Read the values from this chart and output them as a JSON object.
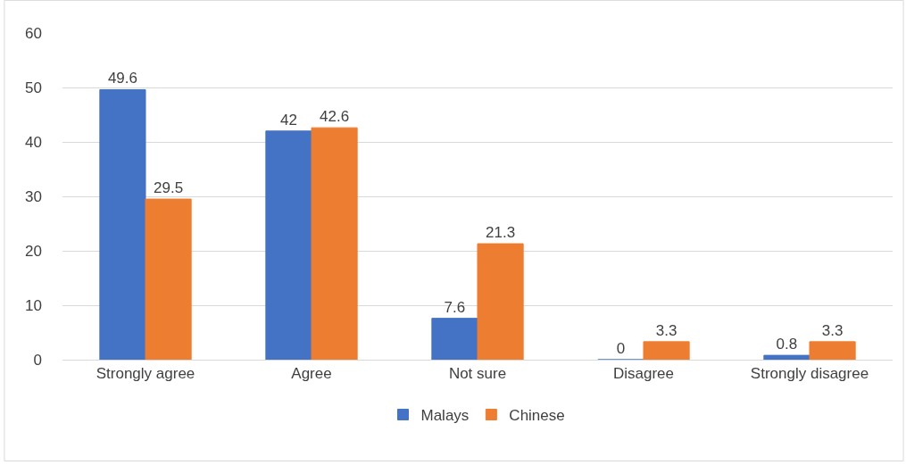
{
  "chart_data": {
    "type": "bar",
    "categories": [
      "Strongly agree",
      "Agree",
      "Not sure",
      "Disagree",
      "Strongly disagree"
    ],
    "series": [
      {
        "name": "Malays",
        "color": "#4472c4",
        "values": [
          49.6,
          42,
          7.6,
          0,
          0.8
        ]
      },
      {
        "name": "Chinese",
        "color": "#ed7d31",
        "values": [
          29.5,
          42.6,
          21.3,
          3.3,
          3.3
        ]
      }
    ],
    "ylim": [
      0,
      60
    ],
    "yticks": [
      0,
      10,
      20,
      30,
      40,
      50,
      60
    ],
    "grid": "y",
    "legend": "bottom",
    "data_labels": true
  }
}
